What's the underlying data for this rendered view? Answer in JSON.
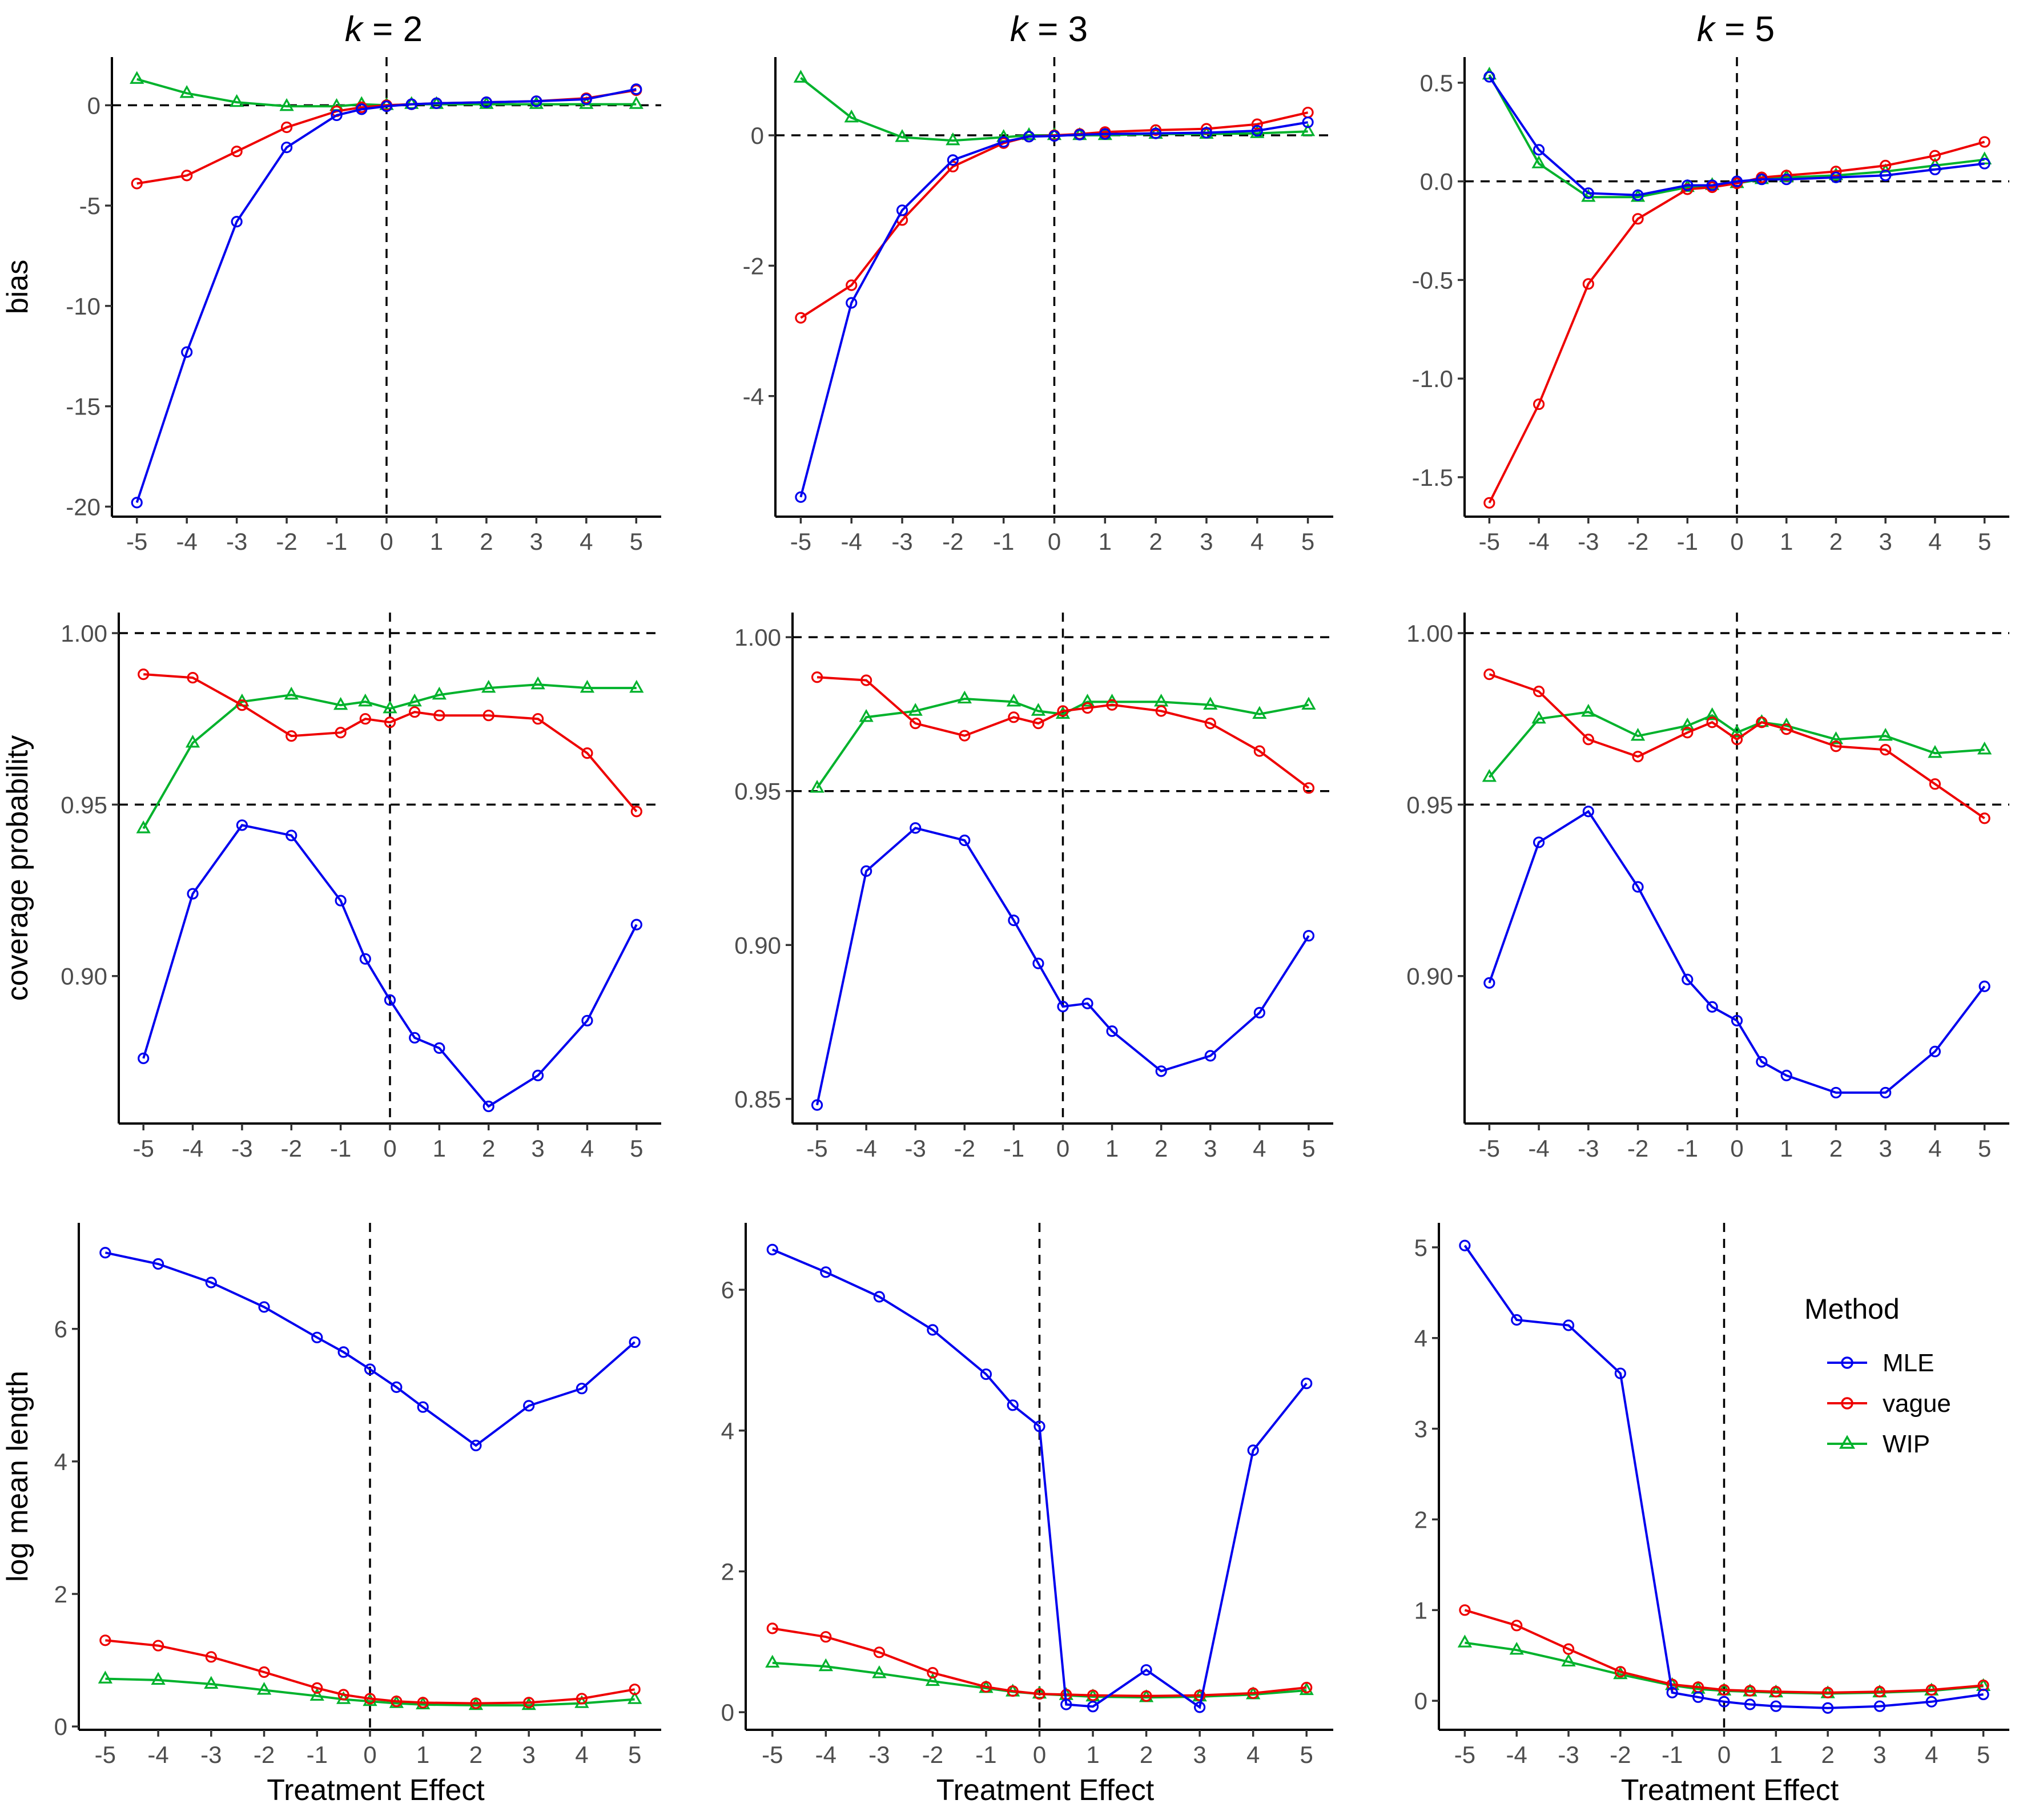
{
  "chart_data": [
    {
      "type": "line",
      "panel": "bias, k = 2",
      "title_k": "k",
      "title_value": "= 2",
      "ylabel": "bias",
      "xlabel": "",
      "x": [
        -5,
        -4,
        -3,
        -2,
        -1,
        -0.5,
        0,
        0.5,
        1,
        2,
        3,
        4,
        5
      ],
      "xticks": [
        -5,
        -4,
        -3,
        -2,
        -1,
        0,
        1,
        2,
        3,
        4,
        5
      ],
      "xtick_labels": [
        "-5",
        "-4",
        "-3",
        "-2",
        "-1",
        "0",
        "1",
        "2",
        "3",
        "4",
        "5"
      ],
      "ylim": [
        -20.5,
        2.4
      ],
      "yticks": [
        0,
        -5,
        -10,
        -15,
        -20
      ],
      "ytick_labels": [
        "0",
        "-5",
        "-10",
        "-15",
        "-20"
      ],
      "hlines": [
        0
      ],
      "vline": 0,
      "series": [
        {
          "name": "MLE",
          "values": [
            -19.8,
            -12.3,
            -5.8,
            -2.1,
            -0.5,
            -0.2,
            -0.05,
            0.05,
            0.1,
            0.15,
            0.2,
            0.3,
            0.8
          ]
        },
        {
          "name": "vague",
          "values": [
            -3.9,
            -3.5,
            -2.3,
            -1.1,
            -0.3,
            -0.1,
            0.0,
            0.05,
            0.1,
            0.15,
            0.2,
            0.35,
            0.75
          ]
        },
        {
          "name": "WIP",
          "values": [
            1.3,
            0.6,
            0.15,
            -0.05,
            -0.05,
            0.05,
            0.0,
            0.05,
            0.05,
            0.05,
            0.05,
            0.05,
            0.05
          ]
        }
      ]
    },
    {
      "type": "line",
      "panel": "bias, k = 3",
      "title_k": "k",
      "title_value": "= 3",
      "ylabel": "",
      "xlabel": "",
      "x": [
        -5,
        -4,
        -3,
        -2,
        -1,
        -0.5,
        0,
        0.5,
        1,
        2,
        3,
        4,
        5
      ],
      "xticks": [
        -5,
        -4,
        -3,
        -2,
        -1,
        0,
        1,
        2,
        3,
        4,
        5
      ],
      "xtick_labels": [
        "-5",
        "-4",
        "-3",
        "-2",
        "-1",
        "0",
        "1",
        "2",
        "3",
        "4",
        "5"
      ],
      "ylim": [
        -5.85,
        1.2
      ],
      "yticks": [
        0,
        -2,
        -4
      ],
      "ytick_labels": [
        "0",
        "-2",
        "-4"
      ],
      "hlines": [
        0
      ],
      "vline": 0,
      "series": [
        {
          "name": "MLE",
          "values": [
            -5.55,
            -2.57,
            -1.15,
            -0.38,
            -0.1,
            -0.02,
            -0.01,
            0.01,
            0.02,
            0.03,
            0.04,
            0.07,
            0.2
          ]
        },
        {
          "name": "vague",
          "values": [
            -2.8,
            -2.3,
            -1.3,
            -0.48,
            -0.12,
            -0.02,
            0.0,
            0.02,
            0.05,
            0.08,
            0.1,
            0.17,
            0.35
          ]
        },
        {
          "name": "WIP",
          "values": [
            0.88,
            0.27,
            -0.03,
            -0.08,
            -0.03,
            0.0,
            0.0,
            0.0,
            0.0,
            0.02,
            0.02,
            0.03,
            0.06
          ]
        }
      ]
    },
    {
      "type": "line",
      "panel": "bias, k = 5",
      "title_k": "k",
      "title_value": "= 5",
      "ylabel": "",
      "xlabel": "",
      "x": [
        -5,
        -4,
        -3,
        -2,
        -1,
        -0.5,
        0,
        0.5,
        1,
        2,
        3,
        4,
        5
      ],
      "xticks": [
        -5,
        -4,
        -3,
        -2,
        -1,
        0,
        1,
        2,
        3,
        4,
        5
      ],
      "xtick_labels": [
        "-5",
        "-4",
        "-3",
        "-2",
        "-1",
        "0",
        "1",
        "2",
        "3",
        "4",
        "5"
      ],
      "ylim": [
        -1.7,
        0.63
      ],
      "yticks": [
        0.5,
        0.0,
        -0.5,
        -1.0,
        -1.5
      ],
      "ytick_labels": [
        "0.5",
        "0.0",
        "-0.5",
        "-1.0",
        "-1.5"
      ],
      "hlines": [
        0
      ],
      "vline": 0,
      "series": [
        {
          "name": "MLE",
          "values": [
            0.53,
            0.16,
            -0.06,
            -0.07,
            -0.02,
            -0.02,
            0.0,
            0.01,
            0.01,
            0.02,
            0.03,
            0.06,
            0.09
          ]
        },
        {
          "name": "vague",
          "values": [
            -1.63,
            -1.13,
            -0.52,
            -0.19,
            -0.04,
            -0.03,
            -0.01,
            0.02,
            0.03,
            0.05,
            0.08,
            0.13,
            0.2
          ]
        },
        {
          "name": "WIP",
          "values": [
            0.54,
            0.09,
            -0.08,
            -0.08,
            -0.03,
            -0.02,
            -0.01,
            0.01,
            0.02,
            0.03,
            0.05,
            0.08,
            0.11
          ]
        }
      ]
    },
    {
      "type": "line",
      "panel": "coverage, k = 2",
      "ylabel": "coverage probability",
      "xlabel": "",
      "x": [
        -5,
        -4,
        -3,
        -2,
        -1,
        -0.5,
        0,
        0.5,
        1,
        2,
        3,
        4,
        5
      ],
      "xticks": [
        -5,
        -4,
        -3,
        -2,
        -1,
        0,
        1,
        2,
        3,
        4,
        5
      ],
      "xtick_labels": [
        "-5",
        "-4",
        "-3",
        "-2",
        "-1",
        "0",
        "1",
        "2",
        "3",
        "4",
        "5"
      ],
      "ylim": [
        0.857,
        1.006
      ],
      "yticks": [
        1.0,
        0.95,
        0.9
      ],
      "ytick_labels": [
        "1.00",
        "0.95",
        "0.90"
      ],
      "hlines": [
        1.0,
        0.95
      ],
      "vline": 0,
      "series": [
        {
          "name": "MLE",
          "values": [
            0.876,
            0.924,
            0.944,
            0.941,
            0.922,
            0.905,
            0.893,
            0.882,
            0.879,
            0.862,
            0.871,
            0.887,
            0.915
          ]
        },
        {
          "name": "vague",
          "values": [
            0.988,
            0.987,
            0.979,
            0.97,
            0.971,
            0.975,
            0.974,
            0.977,
            0.976,
            0.976,
            0.975,
            0.965,
            0.948
          ]
        },
        {
          "name": "WIP",
          "values": [
            0.943,
            0.968,
            0.98,
            0.982,
            0.979,
            0.98,
            0.978,
            0.98,
            0.982,
            0.984,
            0.985,
            0.984,
            0.984
          ]
        }
      ]
    },
    {
      "type": "line",
      "panel": "coverage, k = 3",
      "ylabel": "",
      "xlabel": "",
      "x": [
        -5,
        -4,
        -3,
        -2,
        -1,
        -0.5,
        0,
        0.5,
        1,
        2,
        3,
        4,
        5
      ],
      "xticks": [
        -5,
        -4,
        -3,
        -2,
        -1,
        0,
        1,
        2,
        3,
        4,
        5
      ],
      "xtick_labels": [
        "-5",
        "-4",
        "-3",
        "-2",
        "-1",
        "0",
        "1",
        "2",
        "3",
        "4",
        "5"
      ],
      "ylim": [
        0.842,
        1.008
      ],
      "yticks": [
        1.0,
        0.95,
        0.9,
        0.85
      ],
      "ytick_labels": [
        "1.00",
        "0.95",
        "0.90",
        "0.85"
      ],
      "hlines": [
        1.0,
        0.95
      ],
      "vline": 0,
      "series": [
        {
          "name": "MLE",
          "values": [
            0.848,
            0.924,
            0.938,
            0.934,
            0.908,
            0.894,
            0.88,
            0.881,
            0.872,
            0.859,
            0.864,
            0.878,
            0.903
          ]
        },
        {
          "name": "vague",
          "values": [
            0.987,
            0.986,
            0.972,
            0.968,
            0.974,
            0.972,
            0.976,
            0.977,
            0.978,
            0.976,
            0.972,
            0.963,
            0.951
          ]
        },
        {
          "name": "WIP",
          "values": [
            0.951,
            0.974,
            0.976,
            0.98,
            0.979,
            0.976,
            0.975,
            0.979,
            0.979,
            0.979,
            0.978,
            0.975,
            0.978
          ]
        }
      ]
    },
    {
      "type": "line",
      "panel": "coverage, k = 5",
      "ylabel": "",
      "xlabel": "",
      "x": [
        -5,
        -4,
        -3,
        -2,
        -1,
        -0.5,
        0,
        0.5,
        1,
        2,
        3,
        4,
        5
      ],
      "xticks": [
        -5,
        -4,
        -3,
        -2,
        -1,
        0,
        1,
        2,
        3,
        4,
        5
      ],
      "xtick_labels": [
        "-5",
        "-4",
        "-3",
        "-2",
        "-1",
        "0",
        "1",
        "2",
        "3",
        "4",
        "5"
      ],
      "ylim": [
        0.857,
        1.006
      ],
      "yticks": [
        1.0,
        0.95,
        0.9
      ],
      "ytick_labels": [
        "1.00",
        "0.95",
        "0.90"
      ],
      "hlines": [
        1.0,
        0.95
      ],
      "vline": 0,
      "series": [
        {
          "name": "MLE",
          "values": [
            0.898,
            0.939,
            0.948,
            0.926,
            0.899,
            0.891,
            0.887,
            0.875,
            0.871,
            0.866,
            0.866,
            0.878,
            0.897
          ]
        },
        {
          "name": "vague",
          "values": [
            0.988,
            0.983,
            0.969,
            0.964,
            0.971,
            0.974,
            0.969,
            0.974,
            0.972,
            0.967,
            0.966,
            0.956,
            0.946
          ]
        },
        {
          "name": "WIP",
          "values": [
            0.958,
            0.975,
            0.977,
            0.97,
            0.973,
            0.976,
            0.971,
            0.974,
            0.973,
            0.969,
            0.97,
            0.965,
            0.966
          ]
        }
      ]
    },
    {
      "type": "line",
      "panel": "log mean length, k = 2",
      "ylabel": "log mean length",
      "xlabel": "Treatment Effect",
      "x": [
        -5,
        -4,
        -3,
        -2,
        -1,
        -0.5,
        0,
        0.5,
        1,
        2,
        3,
        4,
        5
      ],
      "xticks": [
        -5,
        -4,
        -3,
        -2,
        -1,
        0,
        1,
        2,
        3,
        4,
        5
      ],
      "xtick_labels": [
        "-5",
        "-4",
        "-3",
        "-2",
        "-1",
        "0",
        "1",
        "2",
        "3",
        "4",
        "5"
      ],
      "ylim": [
        -0.05,
        7.6
      ],
      "yticks": [
        0,
        2,
        4,
        6
      ],
      "ytick_labels": [
        "0",
        "2",
        "4",
        "6"
      ],
      "hlines": [],
      "vline": 0,
      "series": [
        {
          "name": "MLE",
          "values": [
            7.15,
            6.98,
            6.7,
            6.33,
            5.87,
            5.65,
            5.39,
            5.12,
            4.82,
            4.24,
            4.84,
            5.1,
            5.8
          ]
        },
        {
          "name": "vague",
          "values": [
            1.3,
            1.22,
            1.05,
            0.82,
            0.58,
            0.48,
            0.42,
            0.38,
            0.36,
            0.35,
            0.36,
            0.42,
            0.56
          ]
        },
        {
          "name": "WIP",
          "values": [
            0.72,
            0.7,
            0.64,
            0.55,
            0.46,
            0.41,
            0.38,
            0.35,
            0.33,
            0.32,
            0.32,
            0.35,
            0.41
          ]
        }
      ]
    },
    {
      "type": "line",
      "panel": "log mean length, k = 3",
      "ylabel": "",
      "xlabel": "Treatment Effect",
      "x": [
        -5,
        -4,
        -3,
        -2,
        -1,
        -0.5,
        0,
        0.5,
        1,
        2,
        3,
        4,
        5
      ],
      "xticks": [
        -5,
        -4,
        -3,
        -2,
        -1,
        0,
        1,
        2,
        3,
        4,
        5
      ],
      "xtick_labels": [
        "-5",
        "-4",
        "-3",
        "-2",
        "-1",
        "0",
        "1",
        "2",
        "3",
        "4",
        "5"
      ],
      "ylim": [
        -0.25,
        6.95
      ],
      "yticks": [
        0,
        2,
        4,
        6
      ],
      "ytick_labels": [
        "0",
        "2",
        "4",
        "6"
      ],
      "hlines": [],
      "vline": 0,
      "series": [
        {
          "name": "MLE",
          "values": [
            6.57,
            6.25,
            5.9,
            5.43,
            4.8,
            4.36,
            4.06,
            0.11,
            0.08,
            0.6,
            0.07,
            3.72,
            4.67
          ]
        },
        {
          "name": "vague",
          "values": [
            1.19,
            1.07,
            0.85,
            0.56,
            0.36,
            0.3,
            0.26,
            0.25,
            0.24,
            0.23,
            0.24,
            0.27,
            0.35
          ]
        },
        {
          "name": "WIP",
          "values": [
            0.7,
            0.65,
            0.55,
            0.44,
            0.34,
            0.29,
            0.26,
            0.24,
            0.22,
            0.21,
            0.22,
            0.25,
            0.31
          ]
        }
      ]
    },
    {
      "type": "line",
      "panel": "log mean length, k = 5",
      "ylabel": "",
      "xlabel": "Treatment Effect",
      "x": [
        -5,
        -4,
        -3,
        -2,
        -1,
        -0.5,
        0,
        0.5,
        1,
        2,
        3,
        4,
        5
      ],
      "xticks": [
        -5,
        -4,
        -3,
        -2,
        -1,
        0,
        1,
        2,
        3,
        4,
        5
      ],
      "xtick_labels": [
        "-5",
        "-4",
        "-3",
        "-2",
        "-1",
        "0",
        "1",
        "2",
        "3",
        "4",
        "5"
      ],
      "ylim": [
        -0.32,
        5.27
      ],
      "yticks": [
        0,
        1,
        2,
        3,
        4,
        5
      ],
      "ytick_labels": [
        "0",
        "1",
        "2",
        "3",
        "4",
        "5"
      ],
      "hlines": [],
      "vline": 0,
      "series": [
        {
          "name": "MLE",
          "values": [
            5.02,
            4.2,
            4.14,
            3.61,
            0.09,
            0.04,
            -0.01,
            -0.04,
            -0.06,
            -0.08,
            -0.06,
            -0.01,
            0.07
          ]
        },
        {
          "name": "vague",
          "values": [
            1.0,
            0.83,
            0.57,
            0.32,
            0.18,
            0.15,
            0.12,
            0.11,
            0.1,
            0.09,
            0.1,
            0.12,
            0.17
          ]
        },
        {
          "name": "WIP",
          "values": [
            0.64,
            0.56,
            0.43,
            0.29,
            0.17,
            0.13,
            0.11,
            0.1,
            0.09,
            0.08,
            0.09,
            0.11,
            0.16
          ]
        }
      ]
    }
  ],
  "legend": {
    "title": "Method",
    "items": [
      {
        "name": "MLE",
        "marker": "circle"
      },
      {
        "name": "vague",
        "marker": "circle"
      },
      {
        "name": "WIP",
        "marker": "triangle"
      }
    ]
  },
  "colors": {
    "MLE": "#0000ee",
    "vague": "#ee0000",
    "WIP": "#00b22c"
  }
}
